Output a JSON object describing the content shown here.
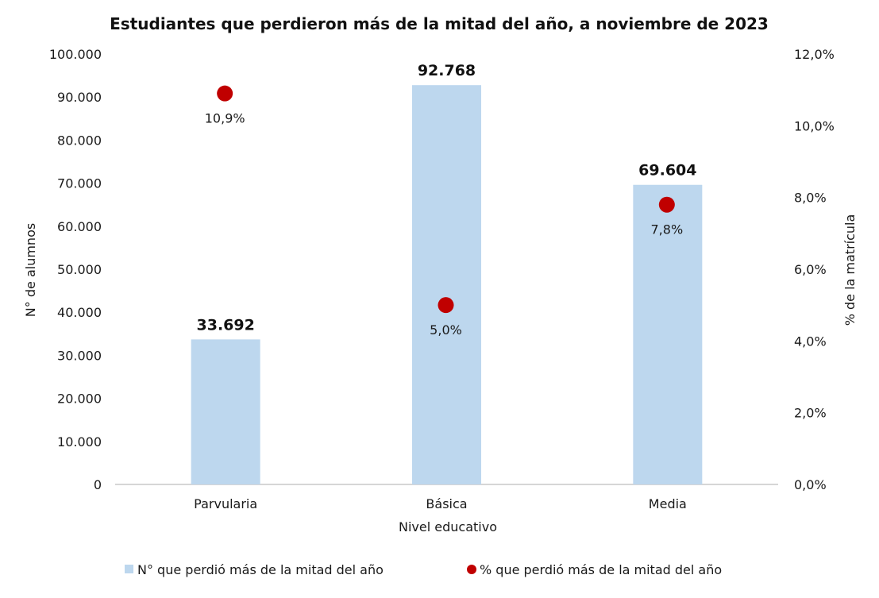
{
  "chart_data": {
    "type": "bar",
    "title": "Estudiantes que perdieron más de la mitad del año, a noviembre de 2023",
    "xlabel": "Nivel educativo",
    "ylabel": "N° de alumnos",
    "y2label": "% de la matrícula",
    "categories": [
      "Parvularia",
      "Básica",
      "Media"
    ],
    "ylim": [
      0,
      100000
    ],
    "y2lim": [
      0,
      12
    ],
    "yticks": [
      0,
      10000,
      20000,
      30000,
      40000,
      50000,
      60000,
      70000,
      80000,
      90000,
      100000
    ],
    "ytick_labels": [
      "0",
      "10.000",
      "20.000",
      "30.000",
      "40.000",
      "50.000",
      "60.000",
      "70.000",
      "80.000",
      "90.000",
      "100.000"
    ],
    "y2ticks": [
      0,
      2,
      4,
      6,
      8,
      10,
      12
    ],
    "y2tick_labels": [
      "0,0%",
      "2,0%",
      "4,0%",
      "6,0%",
      "8,0%",
      "10,0%",
      "12,0%"
    ],
    "grid": false,
    "legend_position": "bottom",
    "series": [
      {
        "name": "N° que perdió más de la mitad del año",
        "type": "bar",
        "axis": "left",
        "color": "#bdd7ee",
        "values": [
          33692,
          92768,
          69604
        ],
        "labels": [
          "33.692",
          "92.768",
          "69.604"
        ]
      },
      {
        "name": "% que perdió más de la mitad del año",
        "type": "scatter",
        "axis": "right",
        "color": "#c00000",
        "values": [
          10.9,
          5.0,
          7.8
        ],
        "labels": [
          "10,9%",
          "5,0%",
          "7,8%"
        ]
      }
    ]
  }
}
